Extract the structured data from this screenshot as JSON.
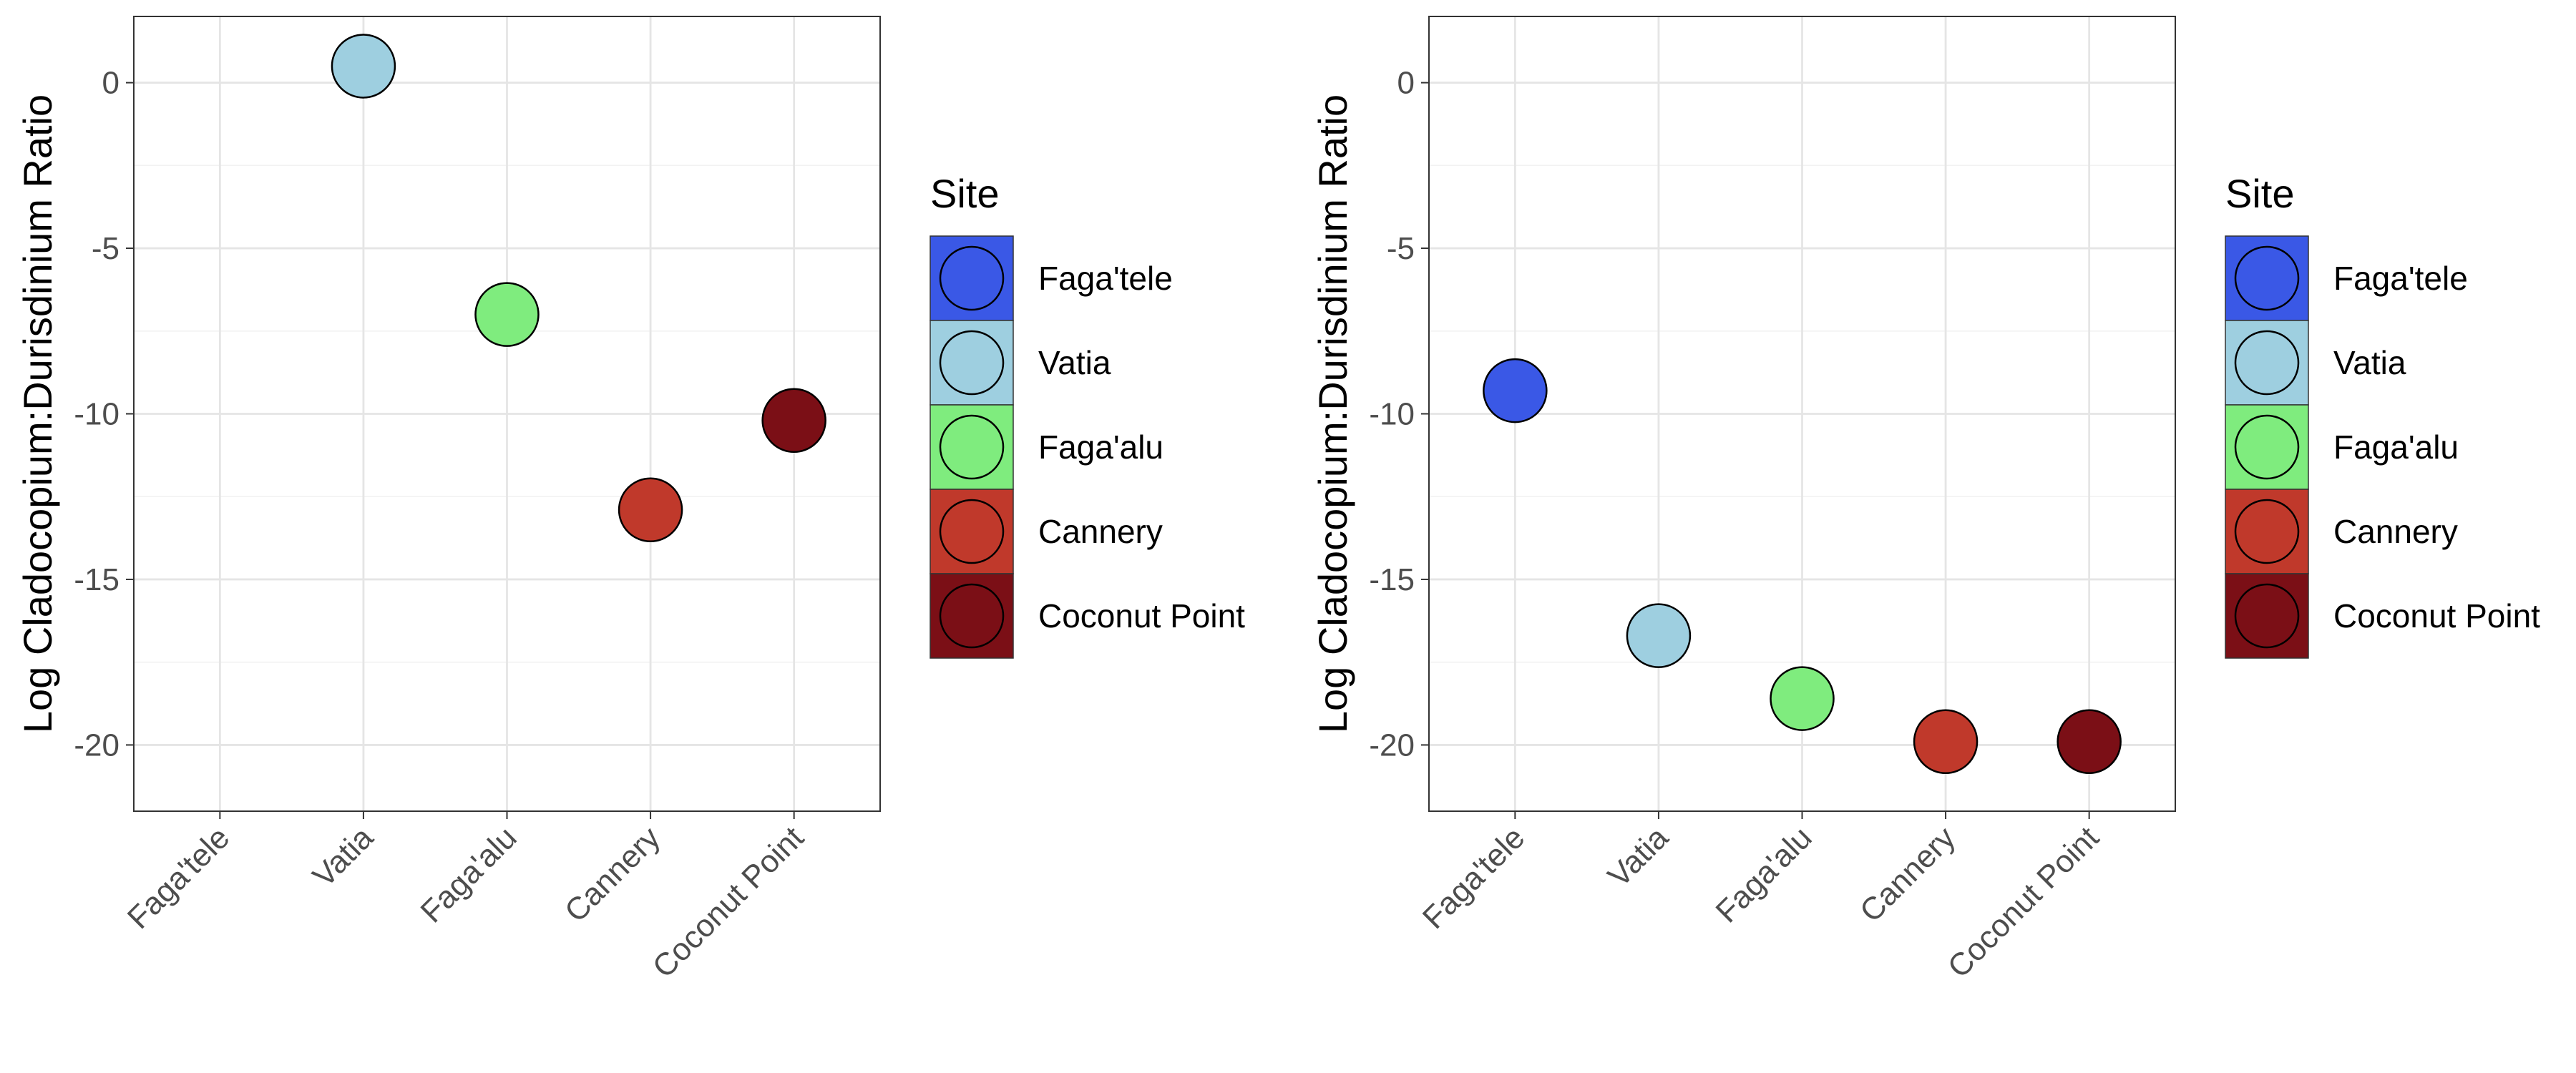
{
  "chart_data": [
    {
      "type": "scatter",
      "categories": [
        "Faga'tele",
        "Vatia",
        "Faga'alu",
        "Cannery",
        "Coconut Point"
      ],
      "ylabel": "Log Cladocopium:Durisdinium Ratio",
      "xlabel": "",
      "ylim": [
        -22,
        2
      ],
      "yticks": [
        0,
        -5,
        -10,
        -15,
        -20
      ],
      "ytick_labels": [
        "0",
        "-5",
        "-10",
        "-15",
        "-20"
      ],
      "grid": true,
      "points": [
        {
          "x": "Vatia",
          "y": 0.5
        },
        {
          "x": "Faga'alu",
          "y": -7.0
        },
        {
          "x": "Cannery",
          "y": -12.9
        },
        {
          "x": "Coconut Point",
          "y": -10.2
        }
      ],
      "legend": {
        "title": "Site",
        "placement": "right",
        "entries": [
          "Faga'tele",
          "Vatia",
          "Faga'alu",
          "Cannery",
          "Coconut Point"
        ]
      }
    },
    {
      "type": "scatter",
      "categories": [
        "Faga'tele",
        "Vatia",
        "Faga'alu",
        "Cannery",
        "Coconut Point"
      ],
      "ylabel": "Log Cladocopium:Durisdinium Ratio",
      "xlabel": "",
      "ylim": [
        -22,
        2
      ],
      "yticks": [
        0,
        -5,
        -10,
        -15,
        -20
      ],
      "ytick_labels": [
        "0",
        "-5",
        "-10",
        "-15",
        "-20"
      ],
      "grid": true,
      "points": [
        {
          "x": "Faga'tele",
          "y": -9.3
        },
        {
          "x": "Vatia",
          "y": -16.7
        },
        {
          "x": "Faga'alu",
          "y": -18.6
        },
        {
          "x": "Cannery",
          "y": -19.9
        },
        {
          "x": "Coconut Point",
          "y": -19.9
        }
      ],
      "legend": {
        "title": "Site",
        "placement": "right",
        "entries": [
          "Faga'tele",
          "Vatia",
          "Faga'alu",
          "Cannery",
          "Coconut Point"
        ]
      }
    }
  ],
  "colors": {
    "Faga'tele": "#3a58e6",
    "Vatia": "#9ecfe0",
    "Faga'alu": "#7fec7e",
    "Cannery": "#c0392b",
    "Coconut Point": "#7b0f16"
  }
}
